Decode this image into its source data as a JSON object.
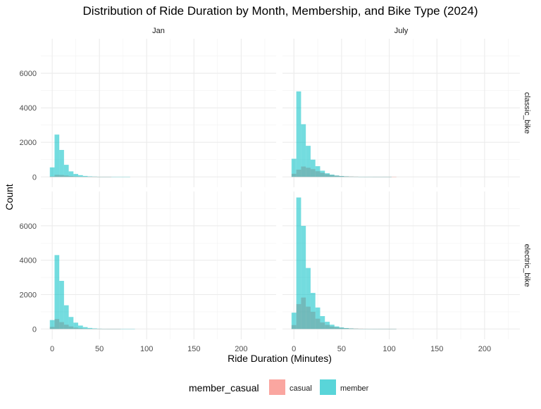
{
  "chart_data": {
    "type": "histogram-facet",
    "title": "Distribution of Ride Duration by Month, Membership, and Bike Type (2024)",
    "xlabel": "Ride Duration (Minutes)",
    "ylabel": "Count",
    "xlim": [
      -12,
      237
    ],
    "ylim": [
      -600,
      8000
    ],
    "x_ticks": [
      0,
      50,
      100,
      150,
      200
    ],
    "x_tick_labels": [
      "0",
      "50",
      "100",
      "150",
      "200"
    ],
    "y_ticks": [
      0,
      2000,
      4000,
      6000
    ],
    "y_tick_labels": [
      "0",
      "2000",
      "4000",
      "6000"
    ],
    "bin_width": 5,
    "bin_starts": [
      -2.5,
      2.5,
      7.5,
      12.5,
      17.5,
      22.5,
      27.5,
      32.5,
      37.5,
      42.5,
      47.5,
      52.5,
      57.5,
      62.5,
      67.5,
      72.5,
      77.5,
      82.5,
      87.5,
      92.5,
      97.5,
      102.5
    ],
    "col_facets": [
      "Jan",
      "July"
    ],
    "row_facets": [
      "classic_bike",
      "electric_bike"
    ],
    "legend": {
      "title": "member_casual",
      "position": "bottom",
      "entries": [
        {
          "name": "casual",
          "color": "#F8766D"
        },
        {
          "name": "member",
          "color": "#00BFC4"
        }
      ]
    },
    "panels": [
      {
        "col": "Jan",
        "row": "classic_bike",
        "series": [
          {
            "name": "casual",
            "values": [
              30,
              120,
              110,
              80,
              50,
              30,
              15,
              8,
              5,
              3,
              2,
              1,
              1,
              0,
              0,
              0,
              0,
              0,
              0,
              0,
              0,
              0
            ]
          },
          {
            "name": "member",
            "values": [
              550,
              2450,
              1560,
              700,
              320,
              170,
              100,
              55,
              30,
              20,
              10,
              6,
              4,
              3,
              2,
              1,
              1,
              0,
              0,
              0,
              0,
              0
            ]
          }
        ]
      },
      {
        "col": "July",
        "row": "classic_bike",
        "series": [
          {
            "name": "casual",
            "values": [
              180,
              420,
              600,
              530,
              450,
              330,
              240,
              160,
              110,
              75,
              50,
              35,
              25,
              18,
              12,
              9,
              7,
              5,
              4,
              3,
              2,
              1
            ]
          },
          {
            "name": "member",
            "values": [
              1050,
              4950,
              3050,
              1800,
              1000,
              620,
              360,
              210,
              130,
              80,
              50,
              30,
              20,
              15,
              10,
              6,
              4,
              3,
              2,
              1,
              1,
              0
            ]
          }
        ]
      },
      {
        "col": "Jan",
        "row": "electric_bike",
        "series": [
          {
            "name": "casual",
            "values": [
              120,
              580,
              400,
              250,
              150,
              80,
              45,
              25,
              15,
              8,
              5,
              3,
              2,
              1,
              1,
              0,
              0,
              0,
              0,
              0,
              0,
              0
            ]
          },
          {
            "name": "member",
            "values": [
              520,
              4300,
              2800,
              1380,
              700,
              370,
              200,
              110,
              60,
              35,
              20,
              12,
              8,
              5,
              3,
              2,
              1,
              1,
              0,
              0,
              0,
              0
            ]
          }
        ]
      },
      {
        "col": "July",
        "row": "electric_bike",
        "series": [
          {
            "name": "casual",
            "values": [
              230,
              1450,
              1830,
              1300,
              1000,
              600,
              380,
              240,
              150,
              100,
              70,
              50,
              38,
              28,
              22,
              18,
              14,
              10,
              8,
              6,
              4,
              3
            ]
          },
          {
            "name": "member",
            "values": [
              950,
              7650,
              6000,
              3550,
              2100,
              1250,
              750,
              420,
              250,
              150,
              90,
              55,
              35,
              22,
              15,
              10,
              7,
              5,
              3,
              2,
              1,
              1
            ]
          }
        ]
      }
    ]
  }
}
